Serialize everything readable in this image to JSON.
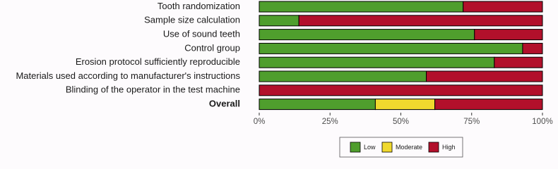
{
  "chart_data": {
    "type": "stacked-barh",
    "categories": [
      "Tooth randomization",
      "Sample size calculation",
      "Use of sound teeth",
      "Control group",
      "Erosion protocol sufficiently reproducible",
      "Materials used according to manufacturer's instructions",
      "Blinding of the operator in the test machine",
      "Overall"
    ],
    "series": [
      {
        "name": "Low",
        "color": "#4f9e2d",
        "values": [
          72,
          14,
          76,
          93,
          83,
          59,
          0,
          41
        ]
      },
      {
        "name": "Moderate",
        "color": "#f0d92e",
        "values": [
          0,
          0,
          0,
          0,
          0,
          0,
          0,
          21
        ]
      },
      {
        "name": "High",
        "color": "#b2102b",
        "values": [
          28,
          86,
          24,
          7,
          17,
          41,
          100,
          38
        ]
      }
    ],
    "xlim": [
      0,
      100
    ],
    "xticks": [
      {
        "value": 0,
        "label": "0%"
      },
      {
        "value": 25,
        "label": "25%"
      },
      {
        "value": 50,
        "label": "50%"
      },
      {
        "value": 75,
        "label": "75%"
      },
      {
        "value": 100,
        "label": "100%"
      }
    ],
    "legend": "bottom"
  }
}
